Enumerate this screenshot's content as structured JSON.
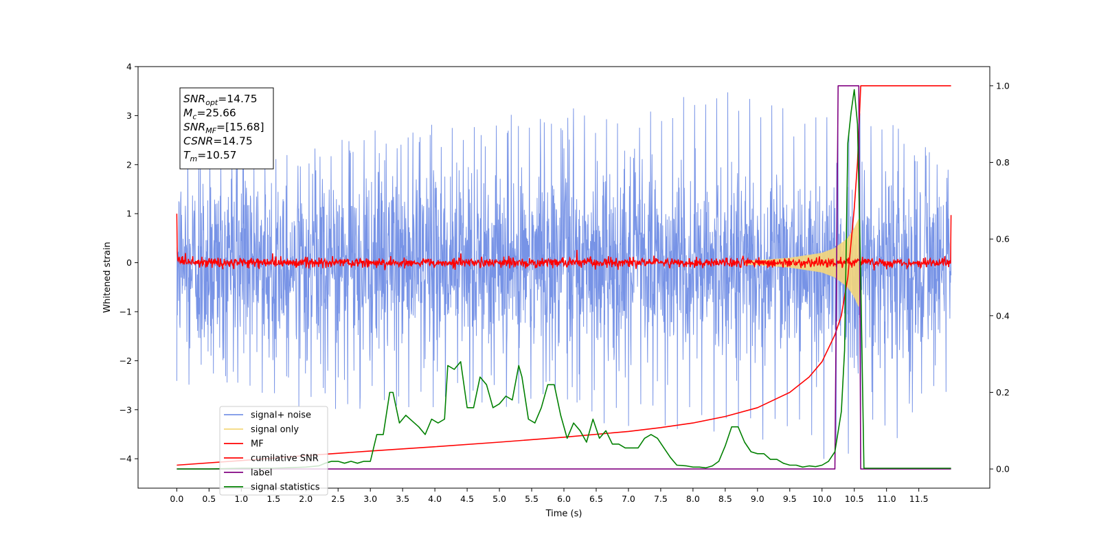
{
  "chart_data": {
    "type": "line",
    "xlabel": "Time (s)",
    "ylabel": "Whitened strain",
    "xlim": [
      -0.6,
      12.6
    ],
    "ylim": [
      -4.6,
      4.0
    ],
    "ylim_right": [
      -0.05,
      1.05
    ],
    "x_ticks": [
      0.0,
      0.5,
      1.0,
      1.5,
      2.0,
      2.5,
      3.0,
      3.5,
      4.0,
      4.5,
      5.0,
      5.5,
      6.0,
      6.5,
      7.0,
      7.5,
      8.0,
      8.5,
      9.0,
      9.5,
      10.0,
      10.5,
      11.0,
      11.5
    ],
    "x_tick_labels": [
      "0.0",
      "0.5",
      "1.0",
      "1.5",
      "2.0",
      "2.5",
      "3.0",
      "3.5",
      "4.0",
      "4.5",
      "5.0",
      "5.5",
      "6.0",
      "6.5",
      "7.0",
      "7.5",
      "8.0",
      "8.5",
      "9.0",
      "9.5",
      "10.0",
      "10.5",
      "11.0",
      "11.5"
    ],
    "y_ticks": [
      4,
      3,
      2,
      1,
      0,
      -1,
      -2,
      -3,
      -4
    ],
    "y_tick_labels": [
      "4",
      "3",
      "2",
      "1",
      "0",
      "−1",
      "−2",
      "−3",
      "−4"
    ],
    "y_right_ticks": [
      1.0,
      0.8,
      0.6,
      0.4,
      0.2,
      0.0
    ],
    "y_right_tick_labels": [
      "1.0",
      "0.8",
      "0.6",
      "0.4",
      "0.2",
      "0.0"
    ],
    "grid": false,
    "legend_position": "lower-left",
    "annotation": {
      "lines": [
        {
          "base": "SNR",
          "sub": "opt",
          "value": "=14.75"
        },
        {
          "base": "M",
          "sub": "c",
          "value": "=25.66"
        },
        {
          "base": "SNR",
          "sub": "MF",
          "value": "=[15.68]"
        },
        {
          "base": "CSNR",
          "sub": "",
          "value": "=14.75"
        },
        {
          "base": "T",
          "sub": "m",
          "value": "=10.57"
        }
      ]
    },
    "series": [
      {
        "name": "signal+ noise",
        "axis": "left",
        "color": "#7793e6",
        "x_range": [
          0.0,
          12.0
        ],
        "envelope_typical": 1.9,
        "x_peaks": [
          0.0,
          1.0,
          2.0,
          2.8,
          4.4,
          5.6,
          6.6,
          8.15,
          9.4,
          10.55,
          12.0
        ],
        "y_peaks_pos": [
          2.55,
          2.1,
          2.5,
          2.85,
          2.8,
          3.2,
          3.2,
          3.62,
          3.2,
          3.3,
          2.0
        ],
        "y_peaks_neg": [
          -2.6,
          -2.6,
          -3.0,
          -3.05,
          -3.0,
          -3.05,
          -3.5,
          -3.5,
          -3.9,
          -4.2,
          -2.9
        ]
      },
      {
        "name": "signal only",
        "axis": "left",
        "color": "#f5d77a",
        "x": [
          0.0,
          9.0,
          9.5,
          10.0,
          10.2,
          10.4,
          10.5,
          10.57,
          10.6,
          12.0
        ],
        "amplitude": [
          0.0,
          0.05,
          0.1,
          0.2,
          0.3,
          0.5,
          0.7,
          0.9,
          0.0,
          0.0
        ]
      },
      {
        "name": "MF",
        "axis": "left",
        "color": "#ff0000",
        "x_range": [
          0.0,
          12.0
        ],
        "endpoints": [
          [
            0.0,
            1.0
          ],
          [
            12.0,
            0.97
          ]
        ],
        "noise_level": 0.05,
        "spike": [
          6.2,
          0.26
        ]
      },
      {
        "name": "cumilative SNR",
        "axis": "right",
        "color": "#ff0000",
        "x": [
          0.0,
          1.0,
          2.0,
          3.0,
          4.0,
          5.0,
          6.0,
          7.0,
          7.5,
          8.0,
          8.5,
          9.0,
          9.5,
          9.8,
          10.0,
          10.2,
          10.3,
          10.4,
          10.5,
          10.55,
          10.6,
          10.7,
          11.0,
          11.5,
          12.0
        ],
        "y": [
          0.01,
          0.022,
          0.035,
          0.047,
          0.058,
          0.07,
          0.083,
          0.098,
          0.108,
          0.12,
          0.137,
          0.16,
          0.2,
          0.24,
          0.28,
          0.35,
          0.4,
          0.5,
          0.68,
          0.8,
          1.0,
          1.0,
          1.0,
          1.0,
          1.0
        ]
      },
      {
        "name": "label",
        "axis": "right",
        "color": "#800080",
        "x": [
          0.0,
          10.2,
          10.25,
          10.57,
          10.6,
          12.0
        ],
        "y": [
          0.0,
          0.0,
          1.0,
          1.0,
          0.0,
          0.0
        ]
      },
      {
        "name": "signal statistics",
        "axis": "right",
        "color": "#008000",
        "x": [
          0.0,
          0.5,
          1.0,
          1.5,
          2.0,
          2.2,
          2.3,
          2.4,
          2.5,
          2.6,
          2.7,
          2.8,
          2.9,
          3.0,
          3.1,
          3.2,
          3.3,
          3.35,
          3.45,
          3.55,
          3.65,
          3.75,
          3.85,
          3.95,
          4.05,
          4.15,
          4.2,
          4.3,
          4.4,
          4.5,
          4.6,
          4.7,
          4.8,
          4.9,
          5.0,
          5.1,
          5.2,
          5.3,
          5.35,
          5.45,
          5.55,
          5.65,
          5.75,
          5.85,
          5.95,
          6.05,
          6.15,
          6.25,
          6.35,
          6.45,
          6.55,
          6.65,
          6.75,
          6.85,
          6.95,
          7.05,
          7.15,
          7.25,
          7.35,
          7.45,
          7.55,
          7.65,
          7.75,
          7.9,
          8.0,
          8.1,
          8.2,
          8.3,
          8.4,
          8.5,
          8.6,
          8.7,
          8.8,
          8.9,
          9.0,
          9.1,
          9.2,
          9.3,
          9.4,
          9.5,
          9.6,
          9.7,
          9.8,
          9.9,
          10.0,
          10.1,
          10.2,
          10.3,
          10.35,
          10.4,
          10.45,
          10.5,
          10.55,
          10.6,
          10.65,
          10.7,
          11.0,
          11.5,
          12.0
        ],
        "y": [
          0.0,
          0.0,
          0.002,
          0.002,
          0.005,
          0.008,
          0.015,
          0.02,
          0.02,
          0.015,
          0.02,
          0.015,
          0.02,
          0.02,
          0.09,
          0.09,
          0.2,
          0.2,
          0.12,
          0.14,
          0.125,
          0.11,
          0.09,
          0.13,
          0.12,
          0.13,
          0.27,
          0.26,
          0.28,
          0.16,
          0.16,
          0.24,
          0.22,
          0.16,
          0.17,
          0.19,
          0.18,
          0.27,
          0.24,
          0.13,
          0.12,
          0.16,
          0.22,
          0.22,
          0.14,
          0.08,
          0.12,
          0.1,
          0.07,
          0.13,
          0.08,
          0.1,
          0.065,
          0.065,
          0.055,
          0.055,
          0.055,
          0.08,
          0.09,
          0.08,
          0.055,
          0.03,
          0.01,
          0.008,
          0.005,
          0.005,
          0.003,
          0.008,
          0.02,
          0.06,
          0.11,
          0.11,
          0.07,
          0.045,
          0.04,
          0.04,
          0.025,
          0.025,
          0.015,
          0.01,
          0.01,
          0.005,
          0.008,
          0.006,
          0.01,
          0.02,
          0.045,
          0.15,
          0.31,
          0.85,
          0.93,
          0.99,
          0.9,
          0.5,
          0.002,
          0.002,
          0.002,
          0.002,
          0.002
        ]
      }
    ]
  }
}
